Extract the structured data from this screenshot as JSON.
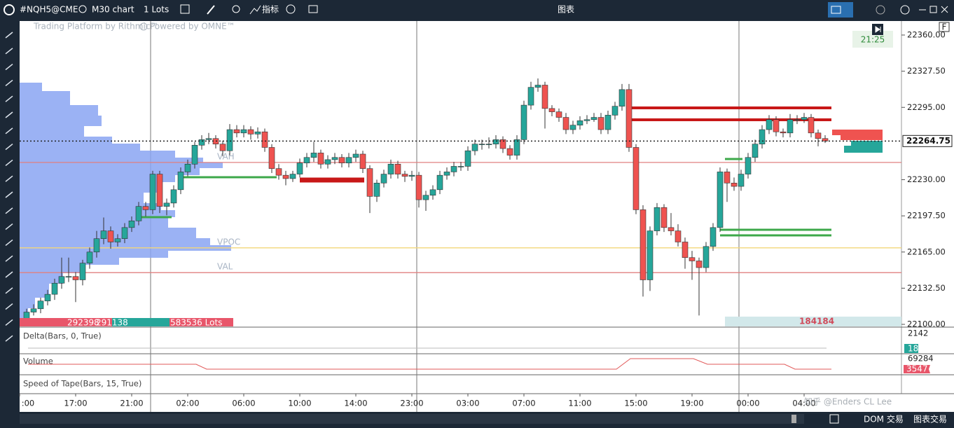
{
  "toolbar": {
    "symbol": "#NQH5@CME",
    "timeframe": "M30 chart",
    "quantity": "1 Lots",
    "indicators": "指标",
    "window_title": "图表",
    "flag": "F"
  },
  "chart_data": {
    "type": "candlestick",
    "watermark_left": "Trading Platform by Rithmic™",
    "watermark_right": "Powered by OMNE™",
    "clock": "21:25",
    "up_color": "#26a69a",
    "down_color": "#ef5350",
    "ylim": [
      22097.5,
      22372.6
    ],
    "yticks": [
      {
        "value": 22100,
        "label": "22100.00"
      },
      {
        "value": 22132.5,
        "label": "22132.50"
      },
      {
        "value": 22165,
        "label": "22165.00"
      },
      {
        "value": 22197.5,
        "label": "22197.50"
      },
      {
        "value": 22230,
        "label": "22230.00"
      },
      {
        "value": 22295,
        "label": "22295.00"
      },
      {
        "value": 22327.5,
        "label": "22327.50"
      },
      {
        "value": 22360,
        "label": "22360.00"
      }
    ],
    "xticks": [
      {
        "value": -1,
        "label": ":00"
      },
      {
        "value": 7,
        "label": "17:00"
      },
      {
        "value": 15,
        "label": "21:00"
      },
      {
        "value": 23,
        "label": "02:00"
      },
      {
        "value": 31,
        "label": "06:00"
      },
      {
        "value": 39,
        "label": "10:00"
      },
      {
        "value": 47,
        "label": "14:00"
      },
      {
        "value": 55,
        "label": "23:00"
      },
      {
        "value": 63,
        "label": "03:00"
      },
      {
        "value": 71,
        "label": "07:00"
      },
      {
        "value": 79,
        "label": "11:00"
      },
      {
        "value": 87,
        "label": "15:00"
      },
      {
        "value": 95,
        "label": "19:00"
      },
      {
        "value": 103,
        "label": "00:00"
      },
      {
        "value": 111,
        "label": "04:00"
      }
    ],
    "levels": [
      {
        "label": "VAH",
        "value": 22245.5,
        "color": "#e08080"
      },
      {
        "label": "VPOC",
        "value": 22168.75,
        "color": "#f3d77a"
      },
      {
        "label": "VAL",
        "value": 22146.5,
        "color": "#e08080"
      }
    ],
    "candles": [
      [
        22105,
        22114,
        22100,
        22111
      ],
      [
        22111,
        22118,
        22108,
        22114
      ],
      [
        22114,
        22124,
        22110,
        22121
      ],
      [
        22121,
        22131,
        22117,
        22127
      ],
      [
        22127,
        22141,
        22122,
        22137
      ],
      [
        22137,
        22160,
        22132,
        22143
      ],
      [
        22143,
        22160,
        22138,
        22143
      ],
      [
        22143,
        22147,
        22120,
        22140
      ],
      [
        22140,
        22158,
        22135,
        22155
      ],
      [
        22155,
        22169,
        22150,
        22165
      ],
      [
        22165,
        22184,
        22160,
        22177
      ],
      [
        22177,
        22196,
        22172,
        22184
      ],
      [
        22184,
        22188,
        22168,
        22174
      ],
      [
        22174,
        22181,
        22170,
        22177
      ],
      [
        22177,
        22191,
        22173,
        22187
      ],
      [
        22187,
        22197,
        22183,
        22193
      ],
      [
        22193,
        22210,
        22189,
        22206
      ],
      [
        22206,
        22210,
        22197,
        22203
      ],
      [
        22203,
        22238,
        22199,
        22235
      ],
      [
        22235,
        22238,
        22200,
        22206
      ],
      [
        22206,
        22213,
        22198,
        22209
      ],
      [
        22209,
        22225,
        22205,
        22221
      ],
      [
        22221,
        22241,
        22217,
        22237
      ],
      [
        22237,
        22248,
        22233,
        22244
      ],
      [
        22244,
        22264,
        22240,
        22261
      ],
      [
        22261,
        22270,
        22257,
        22266
      ],
      [
        22266,
        22272,
        22262,
        22267
      ],
      [
        22267,
        22270,
        22258,
        22262
      ],
      [
        22262,
        22265,
        22251,
        22256
      ],
      [
        22256,
        22280,
        22252,
        22275
      ],
      [
        22275,
        22279,
        22268,
        22272
      ],
      [
        22272,
        22279,
        22268,
        22275
      ],
      [
        22275,
        22278,
        22266,
        22271
      ],
      [
        22271,
        22277,
        22267,
        22273
      ],
      [
        22273,
        22276,
        22255,
        22259
      ],
      [
        22259,
        22262,
        22236,
        22240
      ],
      [
        22240,
        22244,
        22230,
        22234
      ],
      [
        22234,
        22238,
        22225,
        22231
      ],
      [
        22231,
        22238,
        22228,
        22235
      ],
      [
        22235,
        22249,
        22232,
        22245
      ],
      [
        22245,
        22254,
        22241,
        22250
      ],
      [
        22250,
        22264,
        22246,
        22254
      ],
      [
        22254,
        22257,
        22240,
        22244
      ],
      [
        22244,
        22252,
        22240,
        22248
      ],
      [
        22248,
        22254,
        22244,
        22250
      ],
      [
        22250,
        22253,
        22241,
        22245
      ],
      [
        22245,
        22254,
        22241,
        22250
      ],
      [
        22250,
        22257,
        22246,
        22253
      ],
      [
        22253,
        22256,
        22236,
        22240
      ],
      [
        22240,
        22243,
        22200,
        22215
      ],
      [
        22215,
        22230,
        22210,
        22227
      ],
      [
        22227,
        22239,
        22223,
        22235
      ],
      [
        22235,
        22248,
        22231,
        22244
      ],
      [
        22244,
        22247,
        22231,
        22235
      ],
      [
        22235,
        22238,
        22228,
        22233
      ],
      [
        22233,
        22238,
        22229,
        22234
      ],
      [
        22234,
        22237,
        22205,
        22212
      ],
      [
        22212,
        22220,
        22202,
        22216
      ],
      [
        22216,
        22225,
        22212,
        22221
      ],
      [
        22221,
        22238,
        22217,
        22234
      ],
      [
        22234,
        22241,
        22230,
        22237
      ],
      [
        22237,
        22246,
        22233,
        22242
      ],
      [
        22242,
        22246,
        22238,
        22242
      ],
      [
        22242,
        22260,
        22238,
        22256
      ],
      [
        22256,
        22266,
        22252,
        22262
      ],
      [
        22262,
        22266,
        22257,
        22262
      ],
      [
        22262,
        22268,
        22258,
        22262
      ],
      [
        22262,
        22270,
        22258,
        22266
      ],
      [
        22266,
        22269,
        22254,
        22258
      ],
      [
        22258,
        22261,
        22248,
        22252
      ],
      [
        22252,
        22270,
        22248,
        22266
      ],
      [
        22266,
        22301,
        22262,
        22297
      ],
      [
        22297,
        22318,
        22293,
        22313
      ],
      [
        22313,
        22321,
        22309,
        22315
      ],
      [
        22315,
        22318,
        22276,
        22294
      ],
      [
        22294,
        22297,
        22287,
        22291
      ],
      [
        22291,
        22294,
        22282,
        22286
      ],
      [
        22286,
        22290,
        22271,
        22275
      ],
      [
        22275,
        22283,
        22271,
        22279
      ],
      [
        22279,
        22287,
        22275,
        22283
      ],
      [
        22283,
        22288,
        22280,
        22284
      ],
      [
        22284,
        22290,
        22282,
        22286
      ],
      [
        22286,
        22290,
        22271,
        22275
      ],
      [
        22275,
        22292,
        22271,
        22288
      ],
      [
        22288,
        22300,
        22284,
        22296
      ],
      [
        22296,
        22316,
        22292,
        22311
      ],
      [
        22311,
        22316,
        22255,
        22259
      ],
      [
        22259,
        22262,
        22199,
        22203
      ],
      [
        22203,
        22207,
        22125,
        22140
      ],
      [
        22140,
        22188,
        22130,
        22184
      ],
      [
        22184,
        22209,
        22180,
        22205
      ],
      [
        22205,
        22208,
        22183,
        22187
      ],
      [
        22187,
        22200,
        22180,
        22184
      ],
      [
        22184,
        22190,
        22170,
        22174
      ],
      [
        22174,
        22178,
        22150,
        22160
      ],
      [
        22160,
        22166,
        22140,
        22157
      ],
      [
        22157,
        22160,
        22108,
        22151
      ],
      [
        22151,
        22174,
        22147,
        22170
      ],
      [
        22170,
        22191,
        22166,
        22187
      ],
      [
        22187,
        22241,
        22183,
        22237
      ],
      [
        22237,
        22240,
        22210,
        22227
      ],
      [
        22227,
        22232,
        22220,
        22224
      ],
      [
        22224,
        22239,
        22220,
        22235
      ],
      [
        22235,
        22254,
        22231,
        22250
      ],
      [
        22250,
        22266,
        22246,
        22262
      ],
      [
        22262,
        22279,
        22258,
        22275
      ],
      [
        22275,
        22288,
        22271,
        22284
      ],
      [
        22284,
        22287,
        22269,
        22273
      ],
      [
        22273,
        22276,
        22268,
        22272
      ],
      [
        22272,
        22289,
        22268,
        22284
      ],
      [
        22284,
        22288,
        22280,
        22284
      ],
      [
        22284,
        22290,
        22281,
        22286
      ],
      [
        22286,
        22289,
        22268,
        22272
      ],
      [
        22272,
        22275,
        22260,
        22267
      ],
      [
        22267,
        22270,
        22263,
        22264.75
      ]
    ]
  },
  "stats": {
    "sell": "292398",
    "buy": "291138",
    "total": "583536 Lots",
    "session": "184184"
  },
  "panes": [
    {
      "title": "Delta(Bars, 0, True)",
      "max_label": "2142",
      "value_label": "18"
    },
    {
      "title": "Volume",
      "max_label": "69284",
      "value_label": "3547"
    },
    {
      "title": "Speed of Tape(Bars, 15, True)"
    }
  ],
  "status": {
    "dom": "DOM 交易",
    "chart_trade": "图表交易"
  },
  "watermark": "知乎 @Enders CL Lee"
}
